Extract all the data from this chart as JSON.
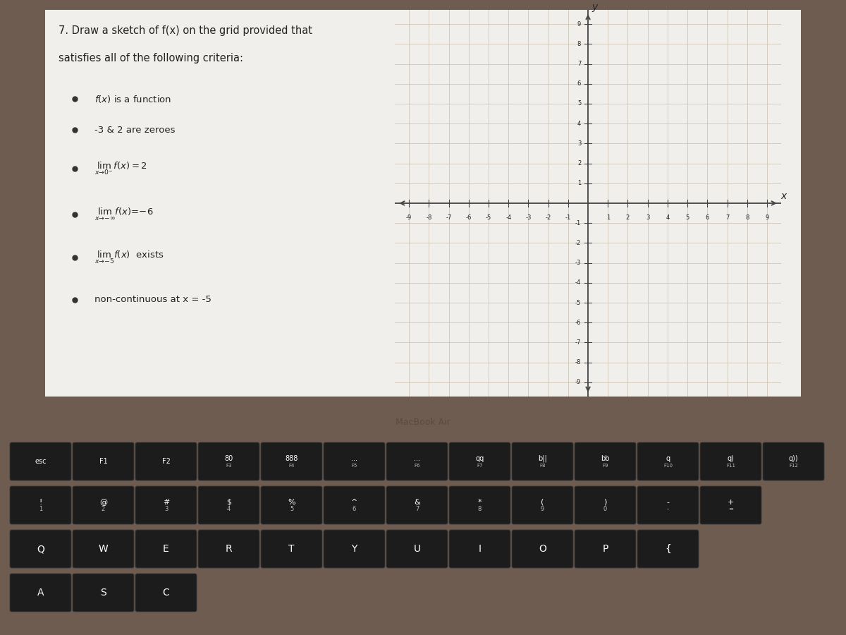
{
  "title_line1": "7. Draw a sketch of f(x) on the grid provided that",
  "title_line2": "satisfies all of the following criteria:",
  "grid_xlim": [
    -9.5,
    9.5
  ],
  "grid_ylim": [
    -9.5,
    9.5
  ],
  "screen_bg": "#f0efeb",
  "screen_bezel": "#1a1a1a",
  "laptop_body": "#6e5c50",
  "macbook_bar_bg": "#1c1c1c",
  "macbook_text_color": "#5a4a40",
  "key_face": "#1c1c1c",
  "key_edge": "#3a3a3a",
  "key_text": "#ffffff",
  "grid_line_color": "#c8bdb0",
  "axis_line_color": "#444444",
  "text_color": "#222222",
  "fn_row": [
    "esc",
    "F1",
    "F2",
    "F3",
    "F4",
    "F5",
    "F6",
    "F7",
    "F8",
    "F9",
    "F10",
    "F11",
    "F12"
  ],
  "fn_icons": [
    "esc",
    "⌘\nF1",
    "⌘\nF2",
    "80\nF3",
    "888\nF4",
    "...\nF5",
    "...\nF6",
    "qq\nF7",
    "b||\nF8",
    "bb\nF9",
    "q\nF10",
    "q)\nF11",
    "q))\nF12"
  ],
  "num_top": [
    "!",
    "@",
    "#",
    "$",
    "%",
    "^",
    "&",
    "*",
    "(",
    ")",
    "-",
    "+"
  ],
  "num_bot": [
    "1",
    "2",
    "3",
    "4",
    "5",
    "6",
    "7",
    "8",
    "9",
    "0",
    "-",
    "="
  ],
  "qwerty": [
    "Q",
    "W",
    "E",
    "R",
    "T",
    "Y",
    "U",
    "I",
    "O",
    "P",
    "{"
  ],
  "arow": [
    "A",
    "S",
    "C"
  ]
}
